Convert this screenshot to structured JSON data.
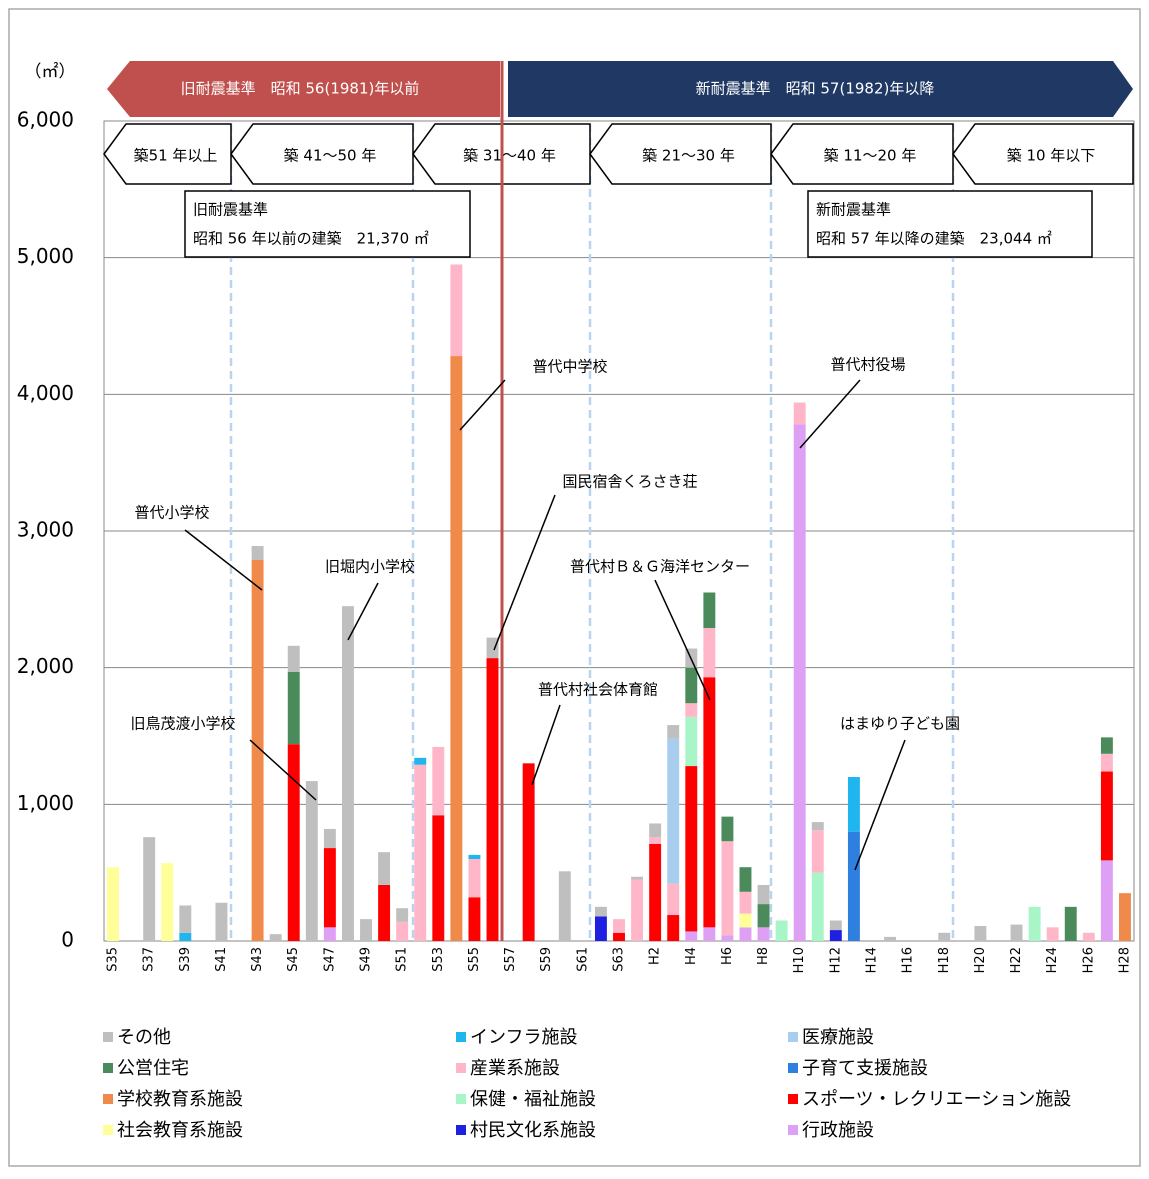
{
  "chart_data": {
    "type": "stacked-bar",
    "unit_label": "（㎡）",
    "era_banners": [
      "旧耐震基準　昭和 56(1981)年以前",
      "新耐震基準　昭和 57(1982)年以降"
    ],
    "age_ranges": [
      "築51 年以上",
      "築 41～50 年",
      "築 31～40 年",
      "築 21～30 年",
      "築 11～20 年",
      "築 10 年以下"
    ],
    "boxes": [
      [
        "旧耐震基準",
        "昭和 56 年以前の建築　21,370 ㎡"
      ],
      [
        "新耐震基準",
        "昭和 57 年以降の建築　23,044 ㎡"
      ]
    ],
    "callouts": [
      "普代小学校",
      "旧堀内小学校",
      "旧鳥茂渡小学校",
      "普代中学校",
      "国民宿舎くろさき荘",
      "普代村Ｂ＆Ｇ海洋センター",
      "普代村社会体育館",
      "普代村役場",
      "はまゆり子ども園"
    ],
    "categories": [
      "S35",
      null,
      "S37",
      null,
      "S39",
      null,
      "S41",
      null,
      "S43",
      null,
      "S45",
      null,
      "S47",
      null,
      "S49",
      null,
      "S51",
      null,
      "S53",
      null,
      "S55",
      null,
      "S57",
      null,
      "S59",
      null,
      "S61",
      null,
      "S63",
      null,
      "H2",
      null,
      "H4",
      null,
      "H6",
      null,
      "H8",
      null,
      "H10",
      null,
      "H12",
      null,
      "H14",
      null,
      "H16",
      null,
      "H18",
      null,
      "H20",
      null,
      "H22",
      null,
      "H24",
      null,
      "H26",
      null,
      "H28"
    ],
    "ylim": [
      0,
      6000
    ],
    "yticks": [
      0,
      {
        "value": 1000,
        "label": "1,000"
      },
      {
        "value": 2000,
        "label": "2,000"
      },
      {
        "value": 3000,
        "label": "3,000"
      },
      {
        "value": 4000,
        "label": "4,000"
      },
      {
        "value": 5000,
        "label": "5,000"
      },
      {
        "value": 6000,
        "label": "6,000"
      }
    ],
    "grid": true,
    "series": [
      {
        "name": "その他",
        "color": "#bfbfbf",
        "values": [
          0,
          0,
          760,
          0,
          200,
          0,
          280,
          0,
          100,
          50,
          190,
          1170,
          140,
          2450,
          160,
          240,
          100,
          0,
          0,
          0,
          0,
          150,
          0,
          0,
          0,
          510,
          0,
          70,
          0,
          20,
          100,
          100,
          140,
          0,
          0,
          0,
          140,
          0,
          0,
          60,
          70,
          0,
          0,
          30,
          0,
          0,
          60,
          0,
          110,
          0,
          120,
          0,
          0,
          0,
          0,
          0,
          0
        ]
      },
      {
        "name": "インフラ施設",
        "color": "#1fb5ee",
        "values": [
          0,
          0,
          0,
          0,
          60,
          0,
          0,
          0,
          0,
          0,
          0,
          0,
          0,
          0,
          0,
          0,
          0,
          50,
          0,
          0,
          30,
          0,
          0,
          0,
          0,
          0,
          0,
          0,
          0,
          0,
          0,
          0,
          0,
          0,
          0,
          0,
          0,
          0,
          0,
          0,
          0,
          400,
          0,
          0,
          0,
          0,
          0,
          0,
          0,
          0,
          0,
          0,
          0,
          0,
          0,
          0,
          0
        ]
      },
      {
        "name": "医療施設",
        "color": "#a9cdee",
        "values": [
          0,
          0,
          0,
          0,
          0,
          0,
          0,
          0,
          0,
          0,
          0,
          0,
          0,
          0,
          0,
          0,
          0,
          0,
          0,
          0,
          0,
          0,
          0,
          0,
          0,
          0,
          0,
          0,
          0,
          0,
          0,
          1060,
          0,
          0,
          0,
          0,
          0,
          0,
          0,
          0,
          0,
          0,
          0,
          0,
          0,
          0,
          0,
          0,
          0,
          0,
          0,
          0,
          0,
          0,
          0,
          0,
          0
        ]
      },
      {
        "name": "公営住宅",
        "color": "#4b8b5b",
        "values": [
          0,
          0,
          0,
          0,
          0,
          0,
          0,
          0,
          0,
          0,
          530,
          0,
          0,
          0,
          0,
          0,
          0,
          0,
          0,
          0,
          0,
          0,
          0,
          0,
          0,
          0,
          0,
          0,
          0,
          0,
          0,
          0,
          260,
          260,
          180,
          180,
          170,
          0,
          0,
          0,
          0,
          0,
          0,
          0,
          0,
          0,
          0,
          0,
          0,
          0,
          0,
          0,
          0,
          250,
          0,
          120,
          0
        ]
      },
      {
        "name": "産業系施設",
        "color": "#ffb6c8",
        "values": [
          0,
          0,
          0,
          0,
          0,
          0,
          0,
          0,
          0,
          0,
          0,
          0,
          0,
          0,
          0,
          0,
          140,
          1290,
          500,
          670,
          280,
          0,
          0,
          0,
          0,
          0,
          0,
          0,
          100,
          450,
          50,
          230,
          100,
          360,
          690,
          160,
          0,
          0,
          160,
          310,
          0,
          0,
          0,
          0,
          0,
          0,
          0,
          0,
          0,
          0,
          0,
          0,
          100,
          0,
          60,
          130,
          0
        ]
      },
      {
        "name": "子育て支援施設",
        "color": "#2e7fe0",
        "values": [
          0,
          0,
          0,
          0,
          0,
          0,
          0,
          0,
          0,
          0,
          0,
          0,
          0,
          0,
          0,
          0,
          0,
          0,
          0,
          0,
          0,
          0,
          0,
          0,
          0,
          0,
          0,
          0,
          0,
          0,
          0,
          0,
          0,
          0,
          0,
          0,
          0,
          0,
          0,
          0,
          0,
          800,
          0,
          0,
          0,
          0,
          0,
          0,
          0,
          0,
          0,
          0,
          0,
          0,
          0,
          0,
          0
        ]
      },
      {
        "name": "学校教育系施設",
        "color": "#f08a4b",
        "values": [
          0,
          0,
          0,
          0,
          0,
          0,
          0,
          0,
          2790,
          0,
          0,
          0,
          0,
          0,
          0,
          0,
          0,
          0,
          0,
          4280,
          0,
          0,
          0,
          0,
          0,
          0,
          0,
          0,
          0,
          0,
          0,
          0,
          0,
          0,
          0,
          0,
          0,
          0,
          0,
          0,
          0,
          0,
          0,
          0,
          0,
          0,
          0,
          0,
          0,
          0,
          0,
          0,
          0,
          0,
          0,
          0,
          350
        ]
      },
      {
        "name": "保健・福祉施設",
        "color": "#a8f5c8",
        "values": [
          0,
          0,
          0,
          0,
          0,
          0,
          0,
          0,
          0,
          0,
          0,
          0,
          0,
          0,
          0,
          0,
          0,
          0,
          0,
          0,
          0,
          0,
          0,
          0,
          0,
          0,
          0,
          0,
          0,
          0,
          0,
          0,
          360,
          0,
          0,
          0,
          0,
          150,
          0,
          500,
          0,
          0,
          0,
          0,
          0,
          0,
          0,
          0,
          0,
          0,
          0,
          250,
          0,
          0,
          0,
          0,
          0
        ]
      },
      {
        "name": "スポーツ・レクリエーション施設",
        "color": "#ff0000",
        "values": [
          0,
          0,
          0,
          0,
          0,
          0,
          0,
          0,
          0,
          0,
          1440,
          0,
          580,
          0,
          0,
          410,
          0,
          0,
          920,
          0,
          320,
          2070,
          0,
          1300,
          0,
          0,
          0,
          0,
          60,
          0,
          710,
          190,
          1210,
          1830,
          0,
          0,
          0,
          0,
          0,
          0,
          0,
          0,
          0,
          0,
          0,
          0,
          0,
          0,
          0,
          0,
          0,
          0,
          0,
          0,
          0,
          650,
          0
        ]
      },
      {
        "name": "社会教育系施設",
        "color": "#ffff99",
        "values": [
          540,
          0,
          0,
          570,
          0,
          0,
          0,
          0,
          0,
          0,
          0,
          0,
          0,
          0,
          0,
          0,
          0,
          0,
          0,
          0,
          0,
          0,
          0,
          0,
          0,
          0,
          0,
          0,
          0,
          0,
          0,
          0,
          0,
          0,
          0,
          100,
          0,
          0,
          0,
          0,
          0,
          0,
          0,
          0,
          0,
          0,
          0,
          0,
          0,
          0,
          0,
          0,
          0,
          0,
          0,
          0,
          0
        ]
      },
      {
        "name": "村民文化系施設",
        "color": "#2020e0",
        "values": [
          0,
          0,
          0,
          0,
          0,
          0,
          0,
          0,
          0,
          0,
          0,
          0,
          0,
          0,
          0,
          0,
          0,
          0,
          0,
          0,
          0,
          0,
          0,
          0,
          0,
          0,
          0,
          180,
          0,
          0,
          0,
          0,
          0,
          0,
          0,
          0,
          0,
          0,
          0,
          0,
          80,
          0,
          0,
          0,
          0,
          0,
          0,
          0,
          0,
          0,
          0,
          0,
          0,
          0,
          0,
          0,
          0
        ]
      },
      {
        "name": "行政施設",
        "color": "#dda0f5",
        "values": [
          0,
          0,
          0,
          0,
          0,
          0,
          0,
          0,
          0,
          0,
          0,
          0,
          100,
          0,
          0,
          0,
          0,
          0,
          0,
          0,
          0,
          0,
          0,
          0,
          0,
          0,
          0,
          0,
          0,
          0,
          0,
          0,
          70,
          100,
          40,
          100,
          100,
          0,
          3780,
          0,
          0,
          0,
          0,
          0,
          0,
          0,
          0,
          0,
          0,
          0,
          0,
          0,
          0,
          0,
          0,
          590,
          0
        ]
      }
    ]
  }
}
